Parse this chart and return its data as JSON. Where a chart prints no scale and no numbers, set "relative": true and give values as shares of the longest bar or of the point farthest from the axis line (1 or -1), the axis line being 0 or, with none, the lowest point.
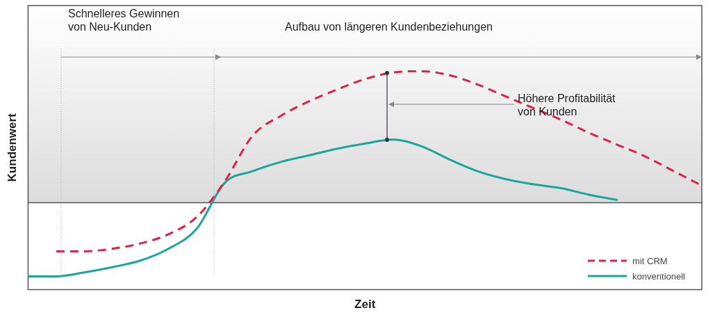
{
  "chart_data": {
    "type": "line",
    "relative": true,
    "xlabel": "Zeit",
    "ylabel": "Kundenwert",
    "legend": "bottom right",
    "annotations": [
      "Schnelleres Gewinnen von Neu-Kunden",
      "Aufbau von längeren Kundenbeziehungen",
      "Höhere Profitabilität von Kunden"
    ],
    "categories": [
      null,
      null,
      null,
      null,
      null,
      null,
      null,
      null,
      null,
      null,
      null,
      null,
      null,
      null,
      null,
      null,
      null,
      null,
      null,
      null,
      null,
      null,
      null,
      null,
      null
    ],
    "series": [
      {
        "name": "mit CRM",
        "color": "#e0204a",
        "line_style": "dashed",
        "values": [
          null,
          -0.37,
          -0.37,
          -0.35,
          -0.31,
          -0.24,
          -0.11,
          0.16,
          0.51,
          0.66,
          0.77,
          0.86,
          0.94,
          0.99,
          1.0,
          0.97,
          0.9,
          0.81,
          0.72,
          0.63,
          0.53,
          0.44,
          0.35,
          0.24,
          0.13
        ]
      },
      {
        "name": "konventionell",
        "color": "#1aa69a",
        "line_style": "solid",
        "values": [
          -0.56,
          -0.56,
          -0.53,
          -0.49,
          -0.44,
          -0.35,
          -0.2,
          0.15,
          0.24,
          0.31,
          0.36,
          0.41,
          0.45,
          0.48,
          0.43,
          0.33,
          0.24,
          0.18,
          0.14,
          0.11,
          0.06,
          0.02,
          null,
          null,
          null
        ]
      }
    ]
  }
}
